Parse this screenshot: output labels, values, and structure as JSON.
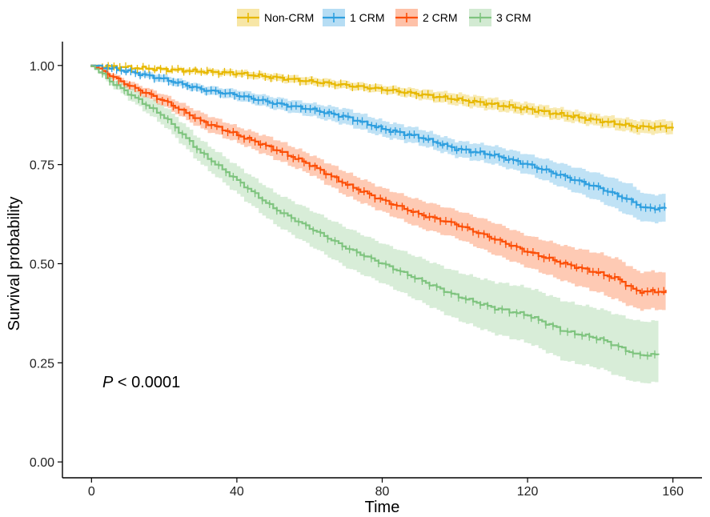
{
  "chart_data": {
    "type": "line",
    "subtype": "kaplan-meier survival curve",
    "xlabel": "Time",
    "ylabel": "Survival probability",
    "xlim": [
      -8,
      168
    ],
    "ylim": [
      -0.04,
      1.04
    ],
    "xticks": [
      0,
      40,
      80,
      120,
      160
    ],
    "xtick_labels": [
      "0",
      "40",
      "80",
      "120",
      "160"
    ],
    "yticks": [
      0,
      0.25,
      0.5,
      0.75,
      1.0
    ],
    "ytick_labels": [
      "0.00",
      "0.25",
      "0.50",
      "0.75",
      "1.00"
    ],
    "legend_position": "top",
    "grid": false,
    "annotation": {
      "italic": "P",
      "text": " < 0.0001",
      "x": 3,
      "y": 0.2
    },
    "series": [
      {
        "name": "Non-CRM",
        "color": "#E7B800",
        "x": [
          0,
          20,
          40,
          60,
          80,
          100,
          120,
          140,
          150,
          160
        ],
        "y": [
          1.0,
          0.99,
          0.98,
          0.96,
          0.94,
          0.915,
          0.89,
          0.86,
          0.845,
          0.845
        ],
        "lower": [
          1.0,
          0.985,
          0.972,
          0.95,
          0.93,
          0.9,
          0.875,
          0.845,
          0.828,
          0.828
        ],
        "upper": [
          1.0,
          0.995,
          0.988,
          0.97,
          0.95,
          0.93,
          0.905,
          0.875,
          0.862,
          0.862
        ]
      },
      {
        "name": "1 CRM",
        "color": "#2E9FDF",
        "x": [
          0,
          10,
          20,
          30,
          40,
          50,
          60,
          70,
          80,
          90,
          100,
          110,
          120,
          130,
          140,
          148,
          152,
          158
        ],
        "y": [
          1.0,
          0.985,
          0.965,
          0.94,
          0.925,
          0.905,
          0.89,
          0.87,
          0.84,
          0.82,
          0.79,
          0.775,
          0.75,
          0.72,
          0.69,
          0.66,
          0.64,
          0.64
        ],
        "lower": [
          1.0,
          0.98,
          0.955,
          0.93,
          0.912,
          0.89,
          0.872,
          0.85,
          0.82,
          0.8,
          0.77,
          0.752,
          0.725,
          0.69,
          0.655,
          0.62,
          0.605,
          0.605
        ],
        "upper": [
          1.0,
          0.99,
          0.975,
          0.95,
          0.938,
          0.92,
          0.905,
          0.89,
          0.86,
          0.84,
          0.81,
          0.798,
          0.775,
          0.75,
          0.725,
          0.7,
          0.675,
          0.675
        ]
      },
      {
        "name": "2 CRM",
        "color": "#FC4E07",
        "x": [
          0,
          5,
          10,
          20,
          30,
          40,
          50,
          60,
          70,
          80,
          90,
          100,
          110,
          120,
          130,
          140,
          145,
          150,
          158
        ],
        "y": [
          1.0,
          0.975,
          0.95,
          0.91,
          0.86,
          0.825,
          0.79,
          0.75,
          0.7,
          0.66,
          0.625,
          0.6,
          0.565,
          0.53,
          0.5,
          0.475,
          0.46,
          0.43,
          0.43
        ],
        "lower": [
          1.0,
          0.968,
          0.94,
          0.895,
          0.84,
          0.805,
          0.765,
          0.725,
          0.67,
          0.63,
          0.59,
          0.565,
          0.525,
          0.49,
          0.455,
          0.425,
          0.405,
          0.385,
          0.385
        ],
        "upper": [
          1.0,
          0.982,
          0.96,
          0.925,
          0.88,
          0.845,
          0.815,
          0.775,
          0.73,
          0.69,
          0.66,
          0.635,
          0.605,
          0.57,
          0.545,
          0.525,
          0.51,
          0.48,
          0.48
        ]
      },
      {
        "name": "3 CRM",
        "color": "#7FC47F",
        "x": [
          0,
          5,
          10,
          20,
          30,
          40,
          50,
          60,
          70,
          80,
          90,
          100,
          110,
          120,
          130,
          140,
          145,
          150,
          156
        ],
        "y": [
          1.0,
          0.96,
          0.93,
          0.87,
          0.78,
          0.71,
          0.64,
          0.59,
          0.54,
          0.5,
          0.46,
          0.42,
          0.39,
          0.37,
          0.33,
          0.31,
          0.29,
          0.27,
          0.27
        ],
        "lower": [
          1.0,
          0.95,
          0.915,
          0.845,
          0.75,
          0.675,
          0.6,
          0.545,
          0.49,
          0.45,
          0.405,
          0.36,
          0.325,
          0.3,
          0.255,
          0.235,
          0.215,
          0.2,
          0.2
        ],
        "upper": [
          1.0,
          0.97,
          0.945,
          0.895,
          0.81,
          0.745,
          0.68,
          0.635,
          0.59,
          0.55,
          0.515,
          0.48,
          0.455,
          0.44,
          0.405,
          0.385,
          0.37,
          0.355,
          0.355
        ]
      }
    ]
  }
}
